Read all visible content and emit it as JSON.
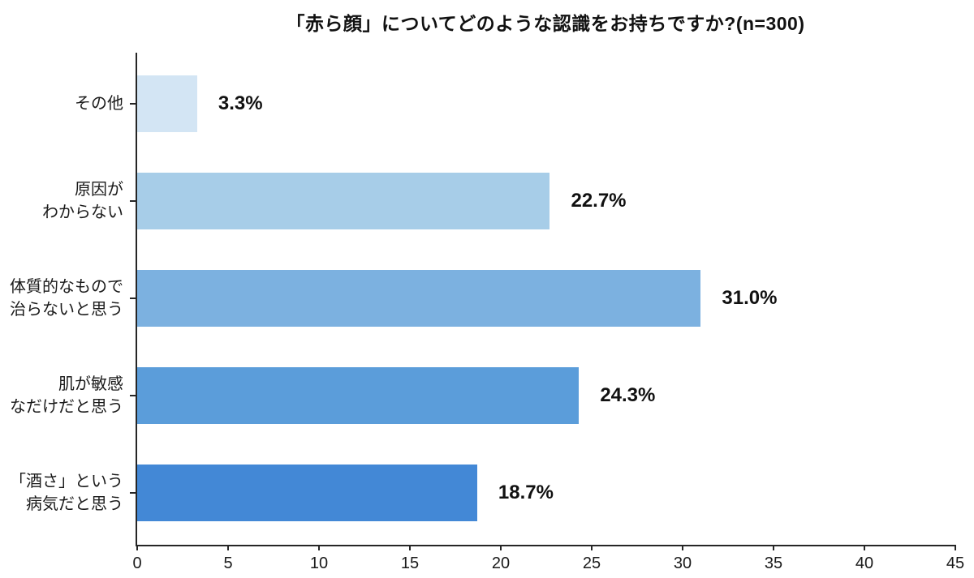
{
  "title": "「赤ら顔」についてどのような認識をお持ちですか?(n=300)",
  "chart_data": {
    "type": "bar",
    "orientation": "horizontal",
    "title": "「赤ら顔」についてどのような認識をお持ちですか?(n=300)",
    "sample_size_note": "n=300",
    "categories": [
      "その他",
      "原因が\nわからない",
      "体質的なもので\n治らないと思う",
      "肌が敏感\nなだけだと思う",
      "「酒さ」という\n病気だと思う"
    ],
    "values": [
      3.3,
      22.7,
      31.0,
      24.3,
      18.7
    ],
    "value_labels": [
      "3.3%",
      "22.7%",
      "31.0%",
      "24.3%",
      "18.7%"
    ],
    "bar_colors": [
      "#d3e5f4",
      "#a7cde8",
      "#7cb1e0",
      "#5b9dda",
      "#4388d6"
    ],
    "xlabel": "",
    "ylabel": "",
    "xlim": [
      0,
      45
    ],
    "x_ticks": [
      0,
      5,
      10,
      15,
      20,
      25,
      30,
      35,
      40,
      45
    ],
    "grid": false,
    "legend": null,
    "axis_color": "#262626",
    "text_color": "#111111"
  }
}
